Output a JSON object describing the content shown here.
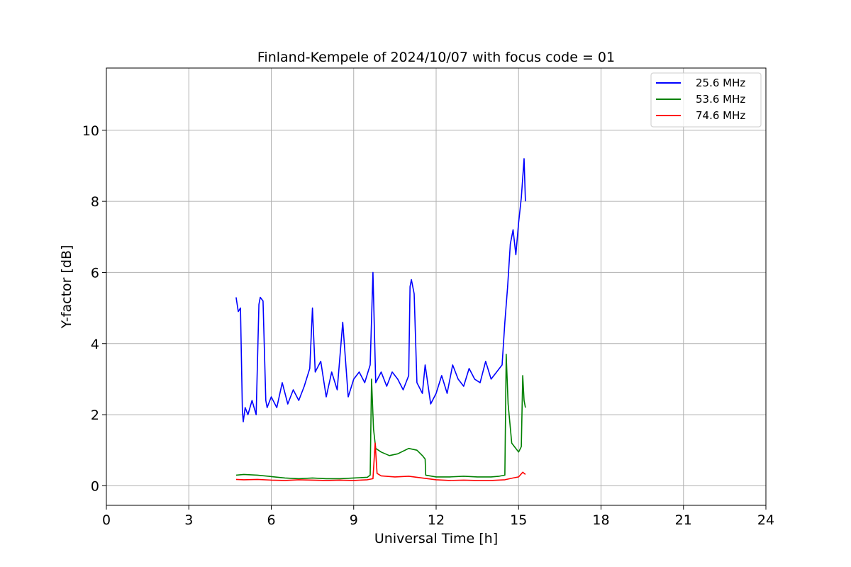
{
  "chart_data": {
    "type": "line",
    "title": "Finland-Kempele of 2024/10/07 with focus code = 01",
    "xlabel": "Universal Time [h]",
    "ylabel": "Y-factor [dB]",
    "xlim": [
      0,
      24
    ],
    "ylim": [
      -0.55,
      11.75
    ],
    "xticks": [
      0,
      3,
      6,
      9,
      12,
      15,
      18,
      21,
      24
    ],
    "xtick_labels": [
      "0",
      "3",
      "6",
      "9",
      "12",
      "15",
      "18",
      "21",
      "24"
    ],
    "yticks": [
      0,
      2,
      4,
      6,
      8,
      10
    ],
    "ytick_labels": [
      "0",
      "2",
      "4",
      "6",
      "8",
      "10"
    ],
    "grid": true,
    "legend_position": "top-right",
    "series": [
      {
        "name": "25.6 MHz",
        "color": "#0000ff",
        "x": [
          4.72,
          4.8,
          4.88,
          4.95,
          4.98,
          5.05,
          5.15,
          5.3,
          5.45,
          5.55,
          5.6,
          5.7,
          5.8,
          5.85,
          5.9,
          6.0,
          6.2,
          6.4,
          6.6,
          6.8,
          7.0,
          7.2,
          7.4,
          7.5,
          7.6,
          7.8,
          8.0,
          8.2,
          8.4,
          8.6,
          8.8,
          9.0,
          9.2,
          9.4,
          9.6,
          9.7,
          9.8,
          10.0,
          10.2,
          10.4,
          10.6,
          10.8,
          11.0,
          11.05,
          11.1,
          11.2,
          11.3,
          11.5,
          11.6,
          11.8,
          12.0,
          12.2,
          12.4,
          12.6,
          12.8,
          13.0,
          13.2,
          13.4,
          13.6,
          13.8,
          14.0,
          14.2,
          14.4,
          14.5,
          14.6,
          14.7,
          14.8,
          14.9,
          15.0,
          15.1,
          15.2,
          15.25
        ],
        "y": [
          5.3,
          4.9,
          5.0,
          2.1,
          1.8,
          2.2,
          2.0,
          2.4,
          2.0,
          5.1,
          5.3,
          5.2,
          2.4,
          2.2,
          2.3,
          2.5,
          2.2,
          2.9,
          2.3,
          2.7,
          2.4,
          2.8,
          3.3,
          5.0,
          3.2,
          3.5,
          2.5,
          3.2,
          2.7,
          4.6,
          2.5,
          3.0,
          3.2,
          2.9,
          3.4,
          6.0,
          2.9,
          3.2,
          2.8,
          3.2,
          3.0,
          2.7,
          3.1,
          5.6,
          5.8,
          5.4,
          2.9,
          2.6,
          3.4,
          2.3,
          2.6,
          3.1,
          2.6,
          3.4,
          3.0,
          2.8,
          3.3,
          3.0,
          2.9,
          3.5,
          3.0,
          3.2,
          3.4,
          4.6,
          5.6,
          6.8,
          7.2,
          6.5,
          7.4,
          8.1,
          9.2,
          8.0
        ]
      },
      {
        "name": "53.6 MHz",
        "color": "#008000",
        "x": [
          4.72,
          5.0,
          5.5,
          6.0,
          6.5,
          7.0,
          7.5,
          8.0,
          8.5,
          9.0,
          9.5,
          9.6,
          9.65,
          9.72,
          9.8,
          10.0,
          10.3,
          10.6,
          11.0,
          11.3,
          11.5,
          11.6,
          11.62,
          12.0,
          12.5,
          13.0,
          13.5,
          14.0,
          14.3,
          14.5,
          14.55,
          14.62,
          14.75,
          15.0,
          15.1,
          15.15,
          15.2,
          15.25
        ],
        "y": [
          0.3,
          0.32,
          0.3,
          0.26,
          0.22,
          0.2,
          0.22,
          0.2,
          0.2,
          0.22,
          0.24,
          0.3,
          3.0,
          1.6,
          1.05,
          0.95,
          0.85,
          0.9,
          1.05,
          1.0,
          0.85,
          0.75,
          0.3,
          0.25,
          0.25,
          0.27,
          0.25,
          0.25,
          0.27,
          0.3,
          3.7,
          2.3,
          1.2,
          0.95,
          1.1,
          3.1,
          2.4,
          2.2
        ]
      },
      {
        "name": "74.6 MHz",
        "color": "#ff0000",
        "x": [
          4.72,
          5.0,
          5.5,
          6.0,
          6.5,
          7.0,
          7.5,
          8.0,
          8.5,
          9.0,
          9.5,
          9.7,
          9.78,
          9.85,
          10.0,
          10.5,
          11.0,
          11.5,
          12.0,
          12.5,
          13.0,
          13.5,
          14.0,
          14.5,
          14.8,
          15.0,
          15.15,
          15.25
        ],
        "y": [
          0.18,
          0.17,
          0.18,
          0.16,
          0.15,
          0.17,
          0.16,
          0.15,
          0.16,
          0.15,
          0.17,
          0.2,
          1.2,
          0.35,
          0.28,
          0.25,
          0.27,
          0.22,
          0.17,
          0.15,
          0.16,
          0.15,
          0.15,
          0.17,
          0.22,
          0.25,
          0.38,
          0.32
        ]
      }
    ]
  }
}
